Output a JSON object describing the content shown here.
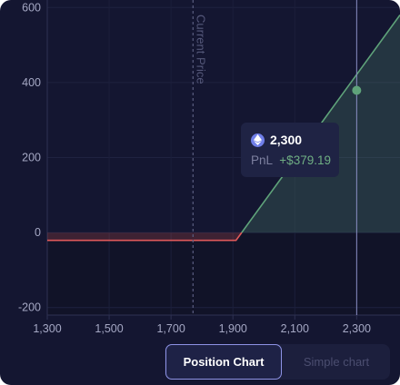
{
  "chart_data": {
    "type": "line",
    "y_ticks": [
      600,
      400,
      200,
      0,
      -200
    ],
    "x_ticks": [
      1300,
      1500,
      1700,
      1900,
      2100,
      2300
    ],
    "y_tick_labels": [
      "600",
      "400",
      "200",
      "0",
      "-200"
    ],
    "x_tick_labels": [
      "1,300",
      "1,500",
      "1,700",
      "1,900",
      "2,100",
      "2,300"
    ],
    "xlim": [
      1300,
      2440
    ],
    "ylim": [
      -220,
      620
    ],
    "series": [
      {
        "x": [
          1300,
          1910,
          2440
        ],
        "y": [
          -20.81,
          -20.81,
          580
        ]
      }
    ],
    "current_price": 1771,
    "current_price_label": "Current Price",
    "marker": {
      "x": 2300,
      "y": 379.19
    },
    "loss_color": "#e05a5a",
    "profit_color": "#5fa37a",
    "grid": true
  },
  "tooltip": {
    "price": "2,300",
    "pnl_label": "PnL",
    "pnl_value": "+$379.19",
    "token_icon": "ethereum-icon"
  },
  "toggle": {
    "active_label": "Position Chart",
    "inactive_label": "Simple chart"
  }
}
